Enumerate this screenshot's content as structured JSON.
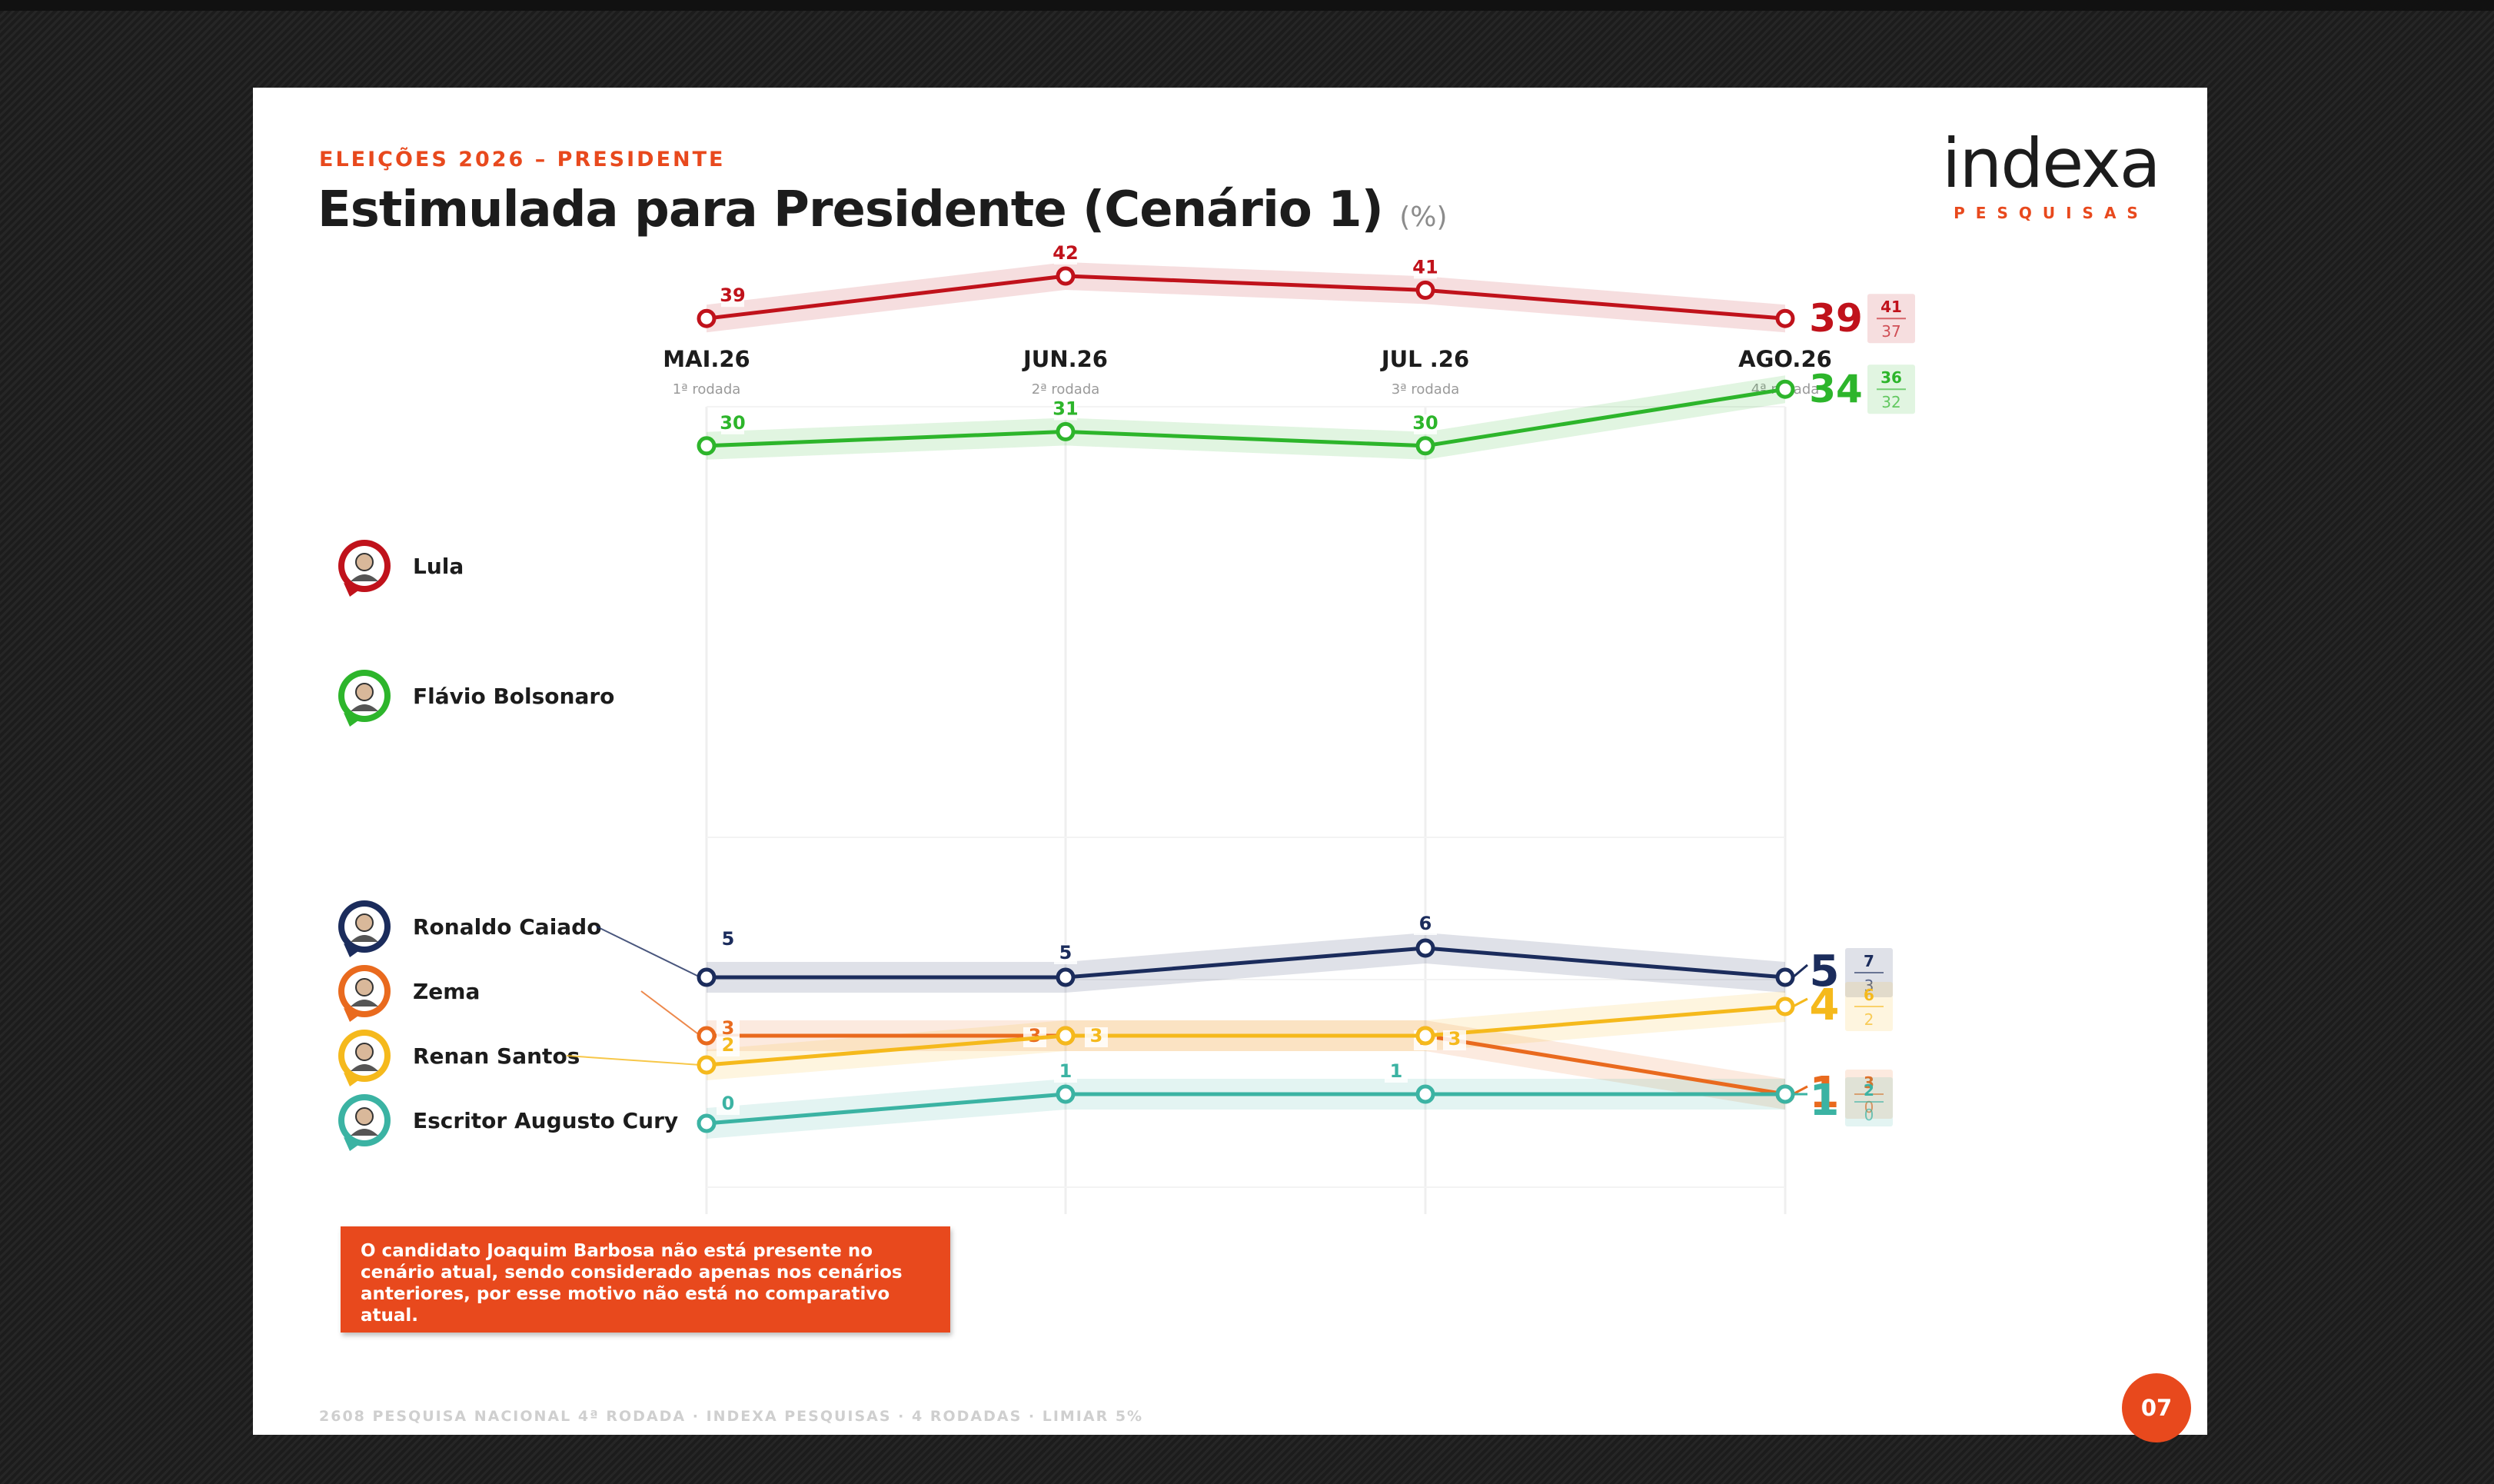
{
  "header": {
    "eyebrow": "ELEIÇÕES 2026 – PRESIDENTE",
    "title": "Estimulada para Presidente (Cenário 1)",
    "unit": "(%)"
  },
  "logo": {
    "word": "indexa",
    "sub": "PESQUISAS"
  },
  "note": "O candidato Joaquim Barbosa não está presente no cenário atual, sendo considerado apenas nos cenários anteriores, por esse motivo não está no comparativo atual.",
  "footer": "2608 PESQUISA NACIONAL 4ª RODADA · INDEXA PESQUISAS · 4 RODADAS · LIMIAR 5%",
  "page_number": "07",
  "chart_data": {
    "type": "line",
    "title": "Estimulada para Presidente (Cenário 1)",
    "unit": "%",
    "periods": [
      {
        "label": "MAI.26",
        "sub": "1ª rodada"
      },
      {
        "label": "JUN.26",
        "sub": "2ª rodada"
      },
      {
        "label": "JUL .26",
        "sub": "3ª rodada"
      },
      {
        "label": "AGO.26",
        "sub": "4ª rodada"
      }
    ],
    "series": [
      {
        "name": "Lula",
        "color": "#c0121b",
        "values": [
          39,
          42,
          41,
          39
        ],
        "range": [
          41,
          37
        ]
      },
      {
        "name": "Flávio Bolsonaro",
        "color": "#2db52b",
        "values": [
          30,
          31,
          30,
          34
        ],
        "range": [
          36,
          32
        ]
      },
      {
        "name": "Ronaldo Caiado",
        "color": "#1b2c5c",
        "values": [
          5,
          5,
          6,
          5
        ],
        "range": [
          7,
          3
        ]
      },
      {
        "name": "Zema",
        "color": "#e96a1e",
        "values": [
          3,
          3,
          3,
          1
        ],
        "range": [
          3,
          0
        ]
      },
      {
        "name": "Renan Santos",
        "color": "#f5b91c",
        "values": [
          2,
          3,
          3,
          4
        ],
        "range": [
          6,
          2
        ]
      },
      {
        "name": "Escritor Augusto Cury",
        "color": "#3bb3a3",
        "values": [
          0,
          1,
          1,
          1
        ],
        "range": [
          2,
          0
        ]
      }
    ]
  }
}
